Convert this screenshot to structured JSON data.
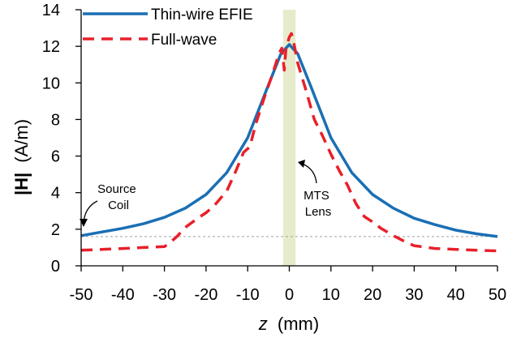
{
  "chart_data": {
    "type": "line",
    "xlabel": "(mm)",
    "xlabel_var": "z",
    "ylabel": "(A/m)",
    "ylabel_var": "|H|",
    "xlim": [
      -50,
      50
    ],
    "ylim": [
      0,
      14
    ],
    "xticks": [
      -50,
      -40,
      -30,
      -20,
      -10,
      0,
      10,
      20,
      30,
      40,
      50
    ],
    "yticks": [
      0,
      2,
      4,
      6,
      8,
      10,
      12,
      14
    ],
    "grid": false,
    "legend": "top-left",
    "series": [
      {
        "name": "Thin-wire EFIE",
        "color": "#1a6fb4",
        "style": "solid",
        "x": [
          -50,
          -45,
          -40,
          -35,
          -30,
          -25,
          -20,
          -15,
          -10,
          -5,
          -2,
          0,
          2,
          5,
          10,
          15,
          20,
          25,
          30,
          35,
          40,
          45,
          50
        ],
        "y": [
          1.65,
          1.85,
          2.05,
          2.3,
          2.65,
          3.15,
          3.9,
          5.1,
          7.0,
          9.9,
          11.6,
          12.1,
          11.6,
          9.9,
          7.0,
          5.1,
          3.9,
          3.15,
          2.6,
          2.25,
          1.95,
          1.75,
          1.6
        ]
      },
      {
        "name": "Full-wave",
        "color": "#e8202a",
        "style": "dashed",
        "x": [
          -50,
          -45,
          -40,
          -35,
          -30,
          -29,
          -27,
          -25,
          -22,
          -20,
          -18,
          -15,
          -13,
          -11,
          -9.5,
          -8,
          -6,
          -4,
          -2.5,
          -1.8,
          -1.2,
          -0.8,
          -0.4,
          0,
          0.5,
          1,
          2,
          4,
          6,
          8,
          10,
          12,
          14,
          16,
          18,
          20,
          22,
          25,
          28,
          30,
          35,
          40,
          45,
          50
        ],
        "y": [
          0.85,
          0.9,
          0.95,
          1.0,
          1.05,
          1.2,
          1.6,
          2.1,
          2.6,
          2.9,
          3.3,
          4.1,
          5.1,
          6.2,
          6.5,
          7.8,
          9.2,
          10.5,
          11.6,
          11.9,
          10.7,
          11.9,
          12.2,
          12.5,
          12.7,
          12.3,
          11.1,
          9.6,
          8.0,
          7.1,
          6.1,
          5.2,
          4.4,
          3.4,
          2.7,
          2.4,
          2.05,
          1.65,
          1.3,
          1.1,
          0.95,
          0.9,
          0.85,
          0.82
        ]
      }
    ],
    "reference_line": {
      "y": 1.6,
      "color": "#a0a0a0",
      "style": "dashed"
    },
    "lens_band": {
      "x": [
        -1.5,
        1.5
      ],
      "color": "#e6ebcc"
    },
    "annotations": [
      {
        "lines": [
          "Source",
          "Coil"
        ]
      },
      {
        "lines": [
          "MTS",
          "Lens"
        ]
      }
    ]
  }
}
